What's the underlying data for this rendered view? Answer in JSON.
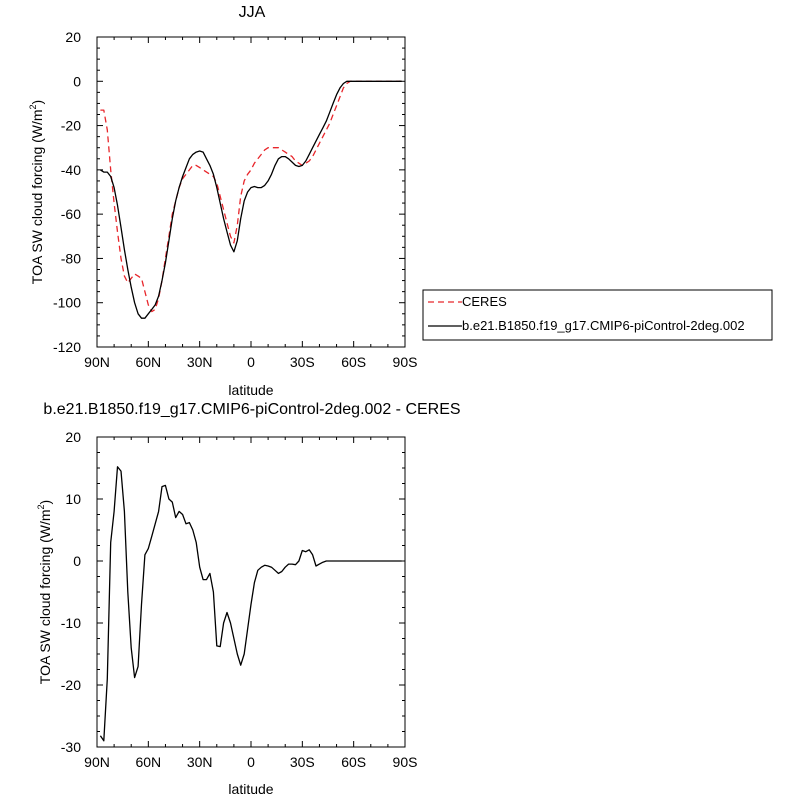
{
  "chart_data": [
    {
      "type": "line",
      "title": "JJA",
      "xlabel": "latitude",
      "ylabel": "TOA SW cloud forcing (W/m",
      "ylabel_sup": "2",
      "ylabel_tail": ")",
      "xlim": [
        90,
        -90
      ],
      "ylim": [
        -120,
        20
      ],
      "xticks": [
        90,
        60,
        30,
        0,
        -30,
        -60,
        -90
      ],
      "xtick_labels": [
        "90N",
        "60N",
        "30N",
        "0",
        "30S",
        "60S",
        "90S"
      ],
      "yticks": [
        20,
        0,
        -20,
        -40,
        -60,
        -80,
        -100,
        -120
      ],
      "ytick_labels": [
        "20",
        "0",
        "-20",
        "-40",
        "-60",
        "-80",
        "-100",
        "-120"
      ],
      "legend_placement": "right",
      "series": [
        {
          "name": "CERES",
          "color": "#e8262b",
          "dash": "dashed",
          "x": [
            88,
            86,
            84,
            82,
            80,
            78,
            76,
            74,
            72,
            70,
            68,
            66,
            64,
            62,
            60,
            58,
            56,
            54,
            52,
            50,
            48,
            46,
            44,
            42,
            40,
            38,
            36,
            34,
            32,
            30,
            28,
            26,
            24,
            22,
            20,
            18,
            16,
            14,
            12,
            10,
            8,
            6,
            4,
            2,
            0,
            -2,
            -4,
            -6,
            -8,
            -10,
            -12,
            -14,
            -16,
            -18,
            -20,
            -22,
            -24,
            -26,
            -28,
            -30,
            -32,
            -34,
            -36,
            -38,
            -40,
            -42,
            -44,
            -46,
            -48,
            -50,
            -52,
            -54,
            -56,
            -58,
            -60,
            -62,
            -64,
            -66,
            -68,
            -70,
            -72,
            -74,
            -76,
            -78,
            -80,
            -82,
            -84,
            -86,
            -88
          ],
          "y": [
            -13,
            -13,
            -22,
            -40,
            -55,
            -68,
            -80,
            -88,
            -91,
            -89,
            -87,
            -88,
            -89,
            -95,
            -101,
            -104,
            -103,
            -98,
            -90,
            -80,
            -70,
            -60,
            -54,
            -48,
            -44,
            -42,
            -40,
            -38,
            -38,
            -39,
            -40,
            -41,
            -42,
            -43,
            -46,
            -52,
            -58,
            -64,
            -70,
            -73,
            -65,
            -52,
            -45,
            -42,
            -40,
            -37,
            -35,
            -33,
            -31,
            -30,
            -30,
            -30,
            -30,
            -31,
            -32,
            -33,
            -34,
            -36,
            -37,
            -38,
            -37,
            -36,
            -34,
            -31,
            -28,
            -25,
            -22,
            -19,
            -15,
            -11,
            -7,
            -3,
            -1,
            0,
            0,
            0,
            0,
            0,
            0,
            0,
            0,
            0,
            0,
            0,
            0,
            0,
            0,
            0,
            0
          ]
        },
        {
          "name": "b.e21.B1850.f19_g17.CMIP6-piControl-2deg.002",
          "color": "#000000",
          "dash": "solid",
          "x": [
            88,
            86,
            84,
            82,
            80,
            78,
            76,
            74,
            72,
            70,
            68,
            66,
            64,
            62,
            60,
            58,
            56,
            54,
            52,
            50,
            48,
            46,
            44,
            42,
            40,
            38,
            36,
            34,
            32,
            30,
            28,
            26,
            24,
            22,
            20,
            18,
            16,
            14,
            12,
            10,
            8,
            6,
            4,
            2,
            0,
            -2,
            -4,
            -6,
            -8,
            -10,
            -12,
            -14,
            -16,
            -18,
            -20,
            -22,
            -24,
            -26,
            -28,
            -30,
            -32,
            -34,
            -36,
            -38,
            -40,
            -42,
            -44,
            -46,
            -48,
            -50,
            -52,
            -54,
            -56,
            -58,
            -60,
            -62,
            -64,
            -66,
            -68,
            -70,
            -72,
            -74,
            -76,
            -78,
            -80,
            -82,
            -84,
            -86,
            -88
          ],
          "y": [
            -40,
            -41,
            -41,
            -43,
            -48,
            -56,
            -66,
            -76,
            -85,
            -93,
            -100,
            -105,
            -107,
            -107,
            -105,
            -103,
            -101,
            -97,
            -90,
            -82,
            -72,
            -62,
            -54,
            -48,
            -43,
            -39,
            -35,
            -33,
            -32,
            -31.5,
            -32,
            -35,
            -38,
            -42,
            -48,
            -55,
            -62,
            -68,
            -74,
            -77,
            -72,
            -62,
            -54,
            -50,
            -48,
            -47.5,
            -48,
            -48,
            -47,
            -45,
            -42,
            -38,
            -35,
            -34,
            -34,
            -35,
            -36.5,
            -38,
            -38.5,
            -38,
            -36,
            -33,
            -30,
            -27,
            -24,
            -21,
            -18,
            -14,
            -10,
            -6,
            -3,
            -1,
            0,
            0,
            0,
            0,
            0,
            0,
            0,
            0,
            0,
            0,
            0,
            0,
            0,
            0,
            0,
            0,
            0
          ]
        }
      ]
    },
    {
      "type": "line",
      "title": "b.e21.B1850.f19_g17.CMIP6-piControl-2deg.002 - CERES",
      "xlabel": "latitude",
      "ylabel": "TOA SW cloud forcing (W/m",
      "ylabel_sup": "2",
      "ylabel_tail": ")",
      "xlim": [
        90,
        -90
      ],
      "ylim": [
        -30,
        20
      ],
      "xticks": [
        90,
        60,
        30,
        0,
        -30,
        -60,
        -90
      ],
      "xtick_labels": [
        "90N",
        "60N",
        "30N",
        "0",
        "30S",
        "60S",
        "90S"
      ],
      "yticks": [
        20,
        10,
        0,
        -10,
        -20,
        -30
      ],
      "ytick_labels": [
        "20",
        "10",
        "0",
        "-10",
        "-20",
        "-30"
      ],
      "series": [
        {
          "color": "#000000",
          "dash": "solid",
          "x": [
            88,
            86,
            84,
            82,
            80,
            78,
            76,
            74,
            72,
            70,
            68,
            66,
            64,
            62,
            60,
            58,
            56,
            54,
            52,
            50,
            48,
            46,
            44,
            42,
            40,
            38,
            36,
            34,
            32,
            30,
            28,
            26,
            24,
            22,
            20,
            18,
            16,
            14,
            12,
            10,
            8,
            6,
            4,
            2,
            0,
            -2,
            -4,
            -6,
            -8,
            -10,
            -12,
            -14,
            -16,
            -18,
            -20,
            -22,
            -24,
            -26,
            -28,
            -30,
            -32,
            -34,
            -36,
            -38,
            -40,
            -42,
            -44,
            -46,
            -48,
            -50,
            -52,
            -54,
            -56,
            -58,
            -60,
            -62,
            -64,
            -66,
            -68,
            -70,
            -72,
            -74,
            -76,
            -78,
            -80,
            -82,
            -84,
            -86,
            -88
          ],
          "y": [
            -28.2,
            -29,
            -19,
            3,
            8,
            15.2,
            14.5,
            8,
            -5,
            -14,
            -18.8,
            -17,
            -7,
            1,
            2,
            4,
            6,
            8,
            12,
            12.2,
            10,
            9.5,
            7,
            8,
            7.5,
            6,
            6.2,
            5,
            3,
            -1,
            -3,
            -3,
            -2,
            -5,
            -13.7,
            -13.8,
            -10,
            -8.3,
            -10,
            -12.5,
            -15,
            -16.8,
            -15,
            -11,
            -7,
            -3.5,
            -1.5,
            -1,
            -0.7,
            -0.8,
            -1,
            -1.5,
            -2,
            -1.7,
            -1,
            -0.5,
            -0.5,
            -0.6,
            0,
            1.7,
            1.5,
            1.8,
            1,
            -0.8,
            -0.5,
            -0.2,
            0,
            0,
            0,
            0,
            0,
            0,
            0,
            0,
            0,
            0,
            0,
            0,
            0,
            0,
            0,
            0,
            0,
            0,
            0,
            0,
            0,
            0,
            0
          ]
        }
      ]
    }
  ]
}
